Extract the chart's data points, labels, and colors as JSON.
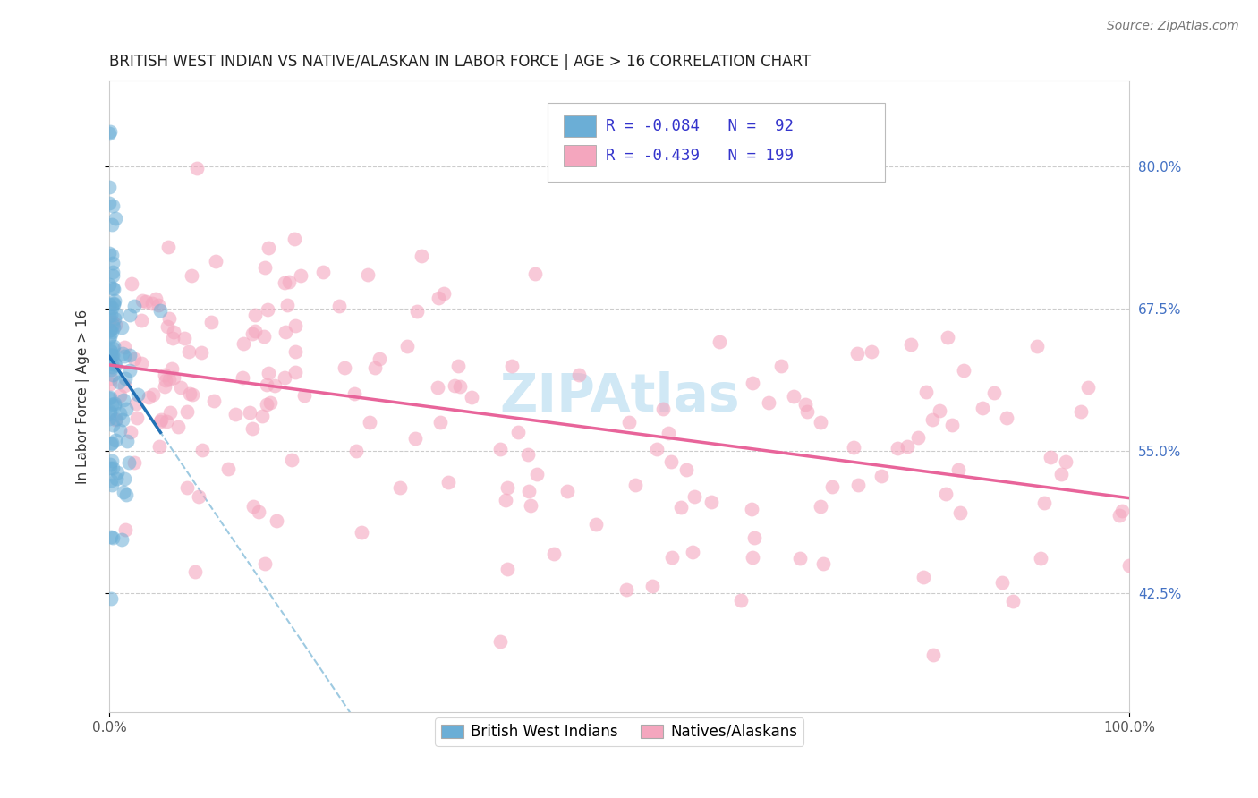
{
  "title": "BRITISH WEST INDIAN VS NATIVE/ALASKAN IN LABOR FORCE | AGE > 16 CORRELATION CHART",
  "source_text": "Source: ZipAtlas.com",
  "ylabel": "In Labor Force | Age > 16",
  "ytick_labels": [
    "80.0%",
    "67.5%",
    "55.0%",
    "42.5%"
  ],
  "ytick_values": [
    0.8,
    0.675,
    0.55,
    0.425
  ],
  "legend_label_blue": "British West Indians",
  "legend_label_pink": "Natives/Alaskans",
  "r_blue": -0.084,
  "n_blue": 92,
  "r_pink": -0.439,
  "n_pink": 199,
  "color_blue": "#6baed6",
  "color_pink": "#f4a6be",
  "color_trendline_blue": "#2171b5",
  "color_trendline_pink": "#e8649a",
  "color_dashed": "#9ecae1",
  "watermark_text": "ZIPAtlas",
  "watermark_color": "#d0e8f5",
  "title_fontsize": 12,
  "axis_label_fontsize": 11,
  "tick_fontsize": 11,
  "source_fontsize": 10,
  "legend_text_color": "#3333cc",
  "ytick_color": "#4472c4",
  "xtick_color": "#555555"
}
